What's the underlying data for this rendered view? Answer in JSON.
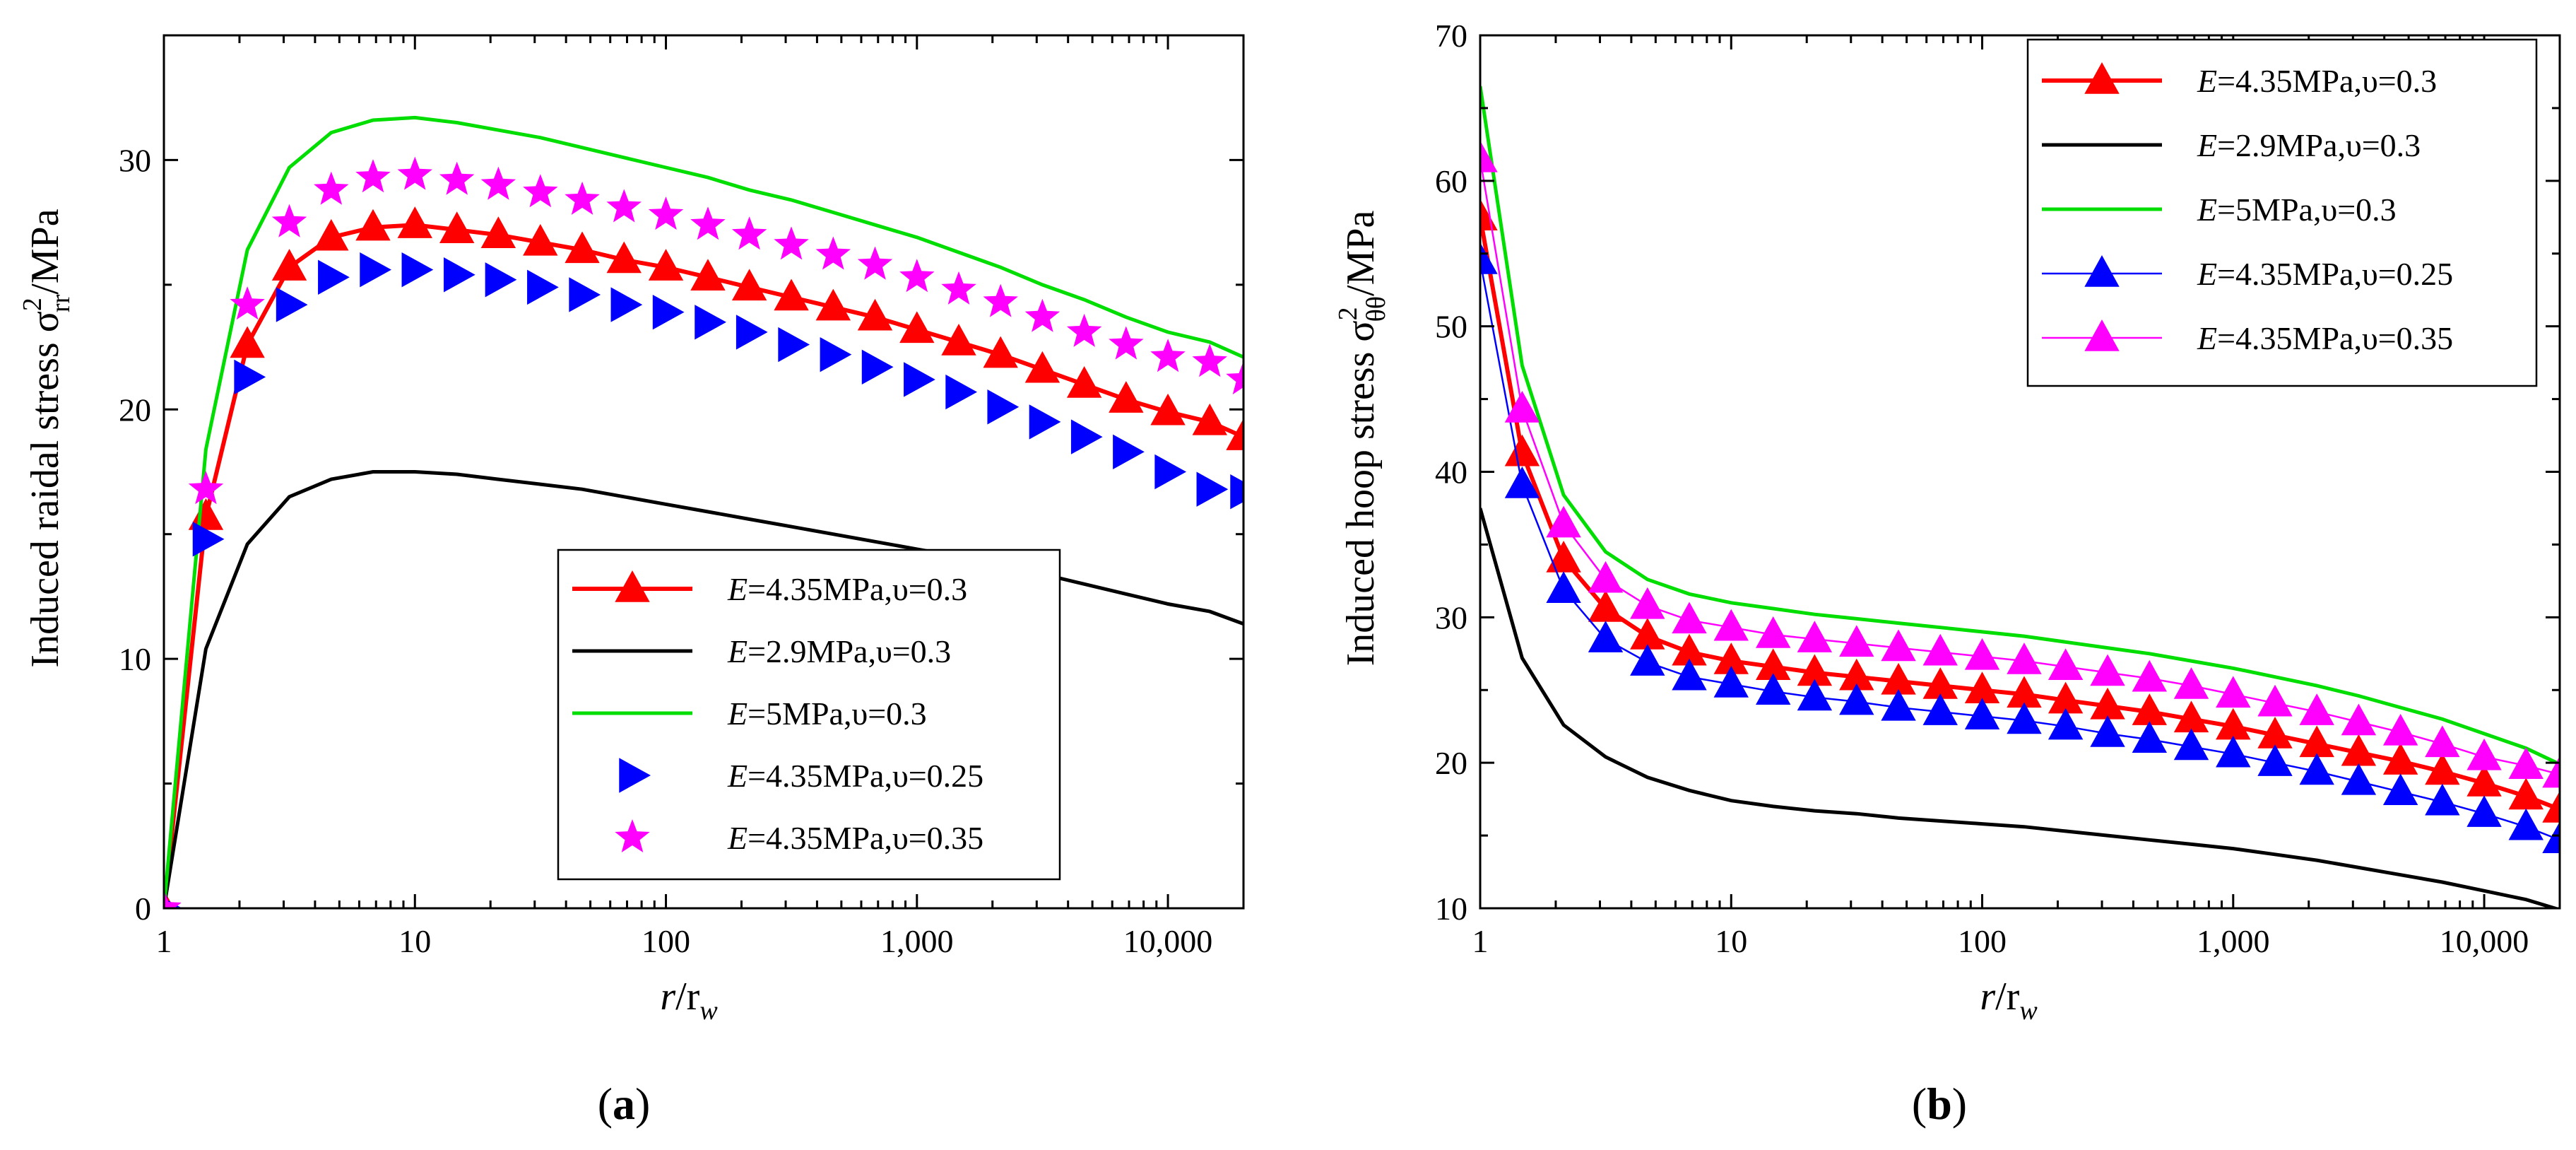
{
  "chart_data": [
    {
      "type": "line",
      "panel_label": "(a)",
      "panel_letter": "a",
      "ylabel": {
        "main": "Induced raidal stress σ",
        "sup": "2",
        "sub": "rr",
        "unit": "/MPa"
      },
      "xlabel": {
        "r": "r",
        "slash": "/r",
        "w": "w"
      },
      "x_scale": "log",
      "xlim": [
        1,
        20000
      ],
      "ylim": [
        0,
        35
      ],
      "x_ticks": [
        {
          "v": 1,
          "label": "1"
        },
        {
          "v": 10,
          "label": "10"
        },
        {
          "v": 100,
          "label": "100"
        },
        {
          "v": 1000,
          "label": "1,000"
        },
        {
          "v": 10000,
          "label": "10,000"
        }
      ],
      "y_ticks": [
        {
          "v": 0,
          "label": "0"
        },
        {
          "v": 10,
          "label": "10"
        },
        {
          "v": 20,
          "label": "20"
        },
        {
          "v": 30,
          "label": "30"
        }
      ],
      "legend_position": "lower-right",
      "x": [
        1,
        1.47,
        2.15,
        3.16,
        4.64,
        6.81,
        10,
        14.7,
        21.5,
        31.6,
        46.4,
        68.1,
        100,
        147,
        215,
        316,
        464,
        681,
        1000,
        1468,
        2154,
        3162,
        4642,
        6813,
        10000,
        14678,
        20000
      ],
      "series": [
        {
          "name": "E=4.35MPa,υ=0.3",
          "color": "#ff0000",
          "marker": "triangle-up",
          "line": true,
          "values": [
            0,
            15.7,
            22.6,
            25.7,
            26.9,
            27.3,
            27.4,
            27.2,
            27.0,
            26.7,
            26.4,
            26.0,
            25.7,
            25.3,
            24.9,
            24.5,
            24.1,
            23.7,
            23.2,
            22.7,
            22.2,
            21.6,
            21.0,
            20.4,
            19.9,
            19.5,
            18.9
          ]
        },
        {
          "name": "E=2.9MPa,υ=0.3",
          "color": "#000000",
          "marker": "none",
          "line": true,
          "values": [
            0,
            10.4,
            14.6,
            16.5,
            17.2,
            17.5,
            17.5,
            17.4,
            17.2,
            17.0,
            16.8,
            16.5,
            16.2,
            15.9,
            15.6,
            15.3,
            15.0,
            14.7,
            14.4,
            14.1,
            13.8,
            13.4,
            13.0,
            12.6,
            12.2,
            11.9,
            11.4
          ]
        },
        {
          "name": "E=5MPa,υ=0.3",
          "color": "#00dd00",
          "marker": "none",
          "line": true,
          "values": [
            0,
            18.4,
            26.4,
            29.7,
            31.1,
            31.6,
            31.7,
            31.5,
            31.2,
            30.9,
            30.5,
            30.1,
            29.7,
            29.3,
            28.8,
            28.4,
            27.9,
            27.4,
            26.9,
            26.3,
            25.7,
            25.0,
            24.4,
            23.7,
            23.1,
            22.7,
            22.1
          ]
        },
        {
          "name": "E=4.35MPa,υ=0.25",
          "color": "#0000ff",
          "marker": "triangle-right",
          "line": false,
          "values": [
            0,
            14.8,
            21.3,
            24.2,
            25.3,
            25.6,
            25.6,
            25.4,
            25.2,
            24.9,
            24.6,
            24.2,
            23.9,
            23.5,
            23.1,
            22.6,
            22.2,
            21.7,
            21.2,
            20.7,
            20.1,
            19.5,
            18.9,
            18.3,
            17.5,
            16.8,
            16.7
          ]
        },
        {
          "name": "E=4.35MPa,υ=0.35",
          "color": "#ff00ff",
          "marker": "star",
          "line": false,
          "values": [
            0,
            16.8,
            24.2,
            27.5,
            28.8,
            29.3,
            29.4,
            29.2,
            29.0,
            28.7,
            28.4,
            28.1,
            27.8,
            27.4,
            27.0,
            26.6,
            26.2,
            25.8,
            25.3,
            24.8,
            24.3,
            23.7,
            23.1,
            22.6,
            22.1,
            21.9,
            21.2
          ]
        }
      ]
    },
    {
      "type": "line",
      "panel_label": "(b)",
      "panel_letter": "b",
      "ylabel": {
        "main": "Induced hoop stress σ",
        "sup": "2",
        "sub": "θθ",
        "unit": "/MPa"
      },
      "xlabel": {
        "r": "r",
        "slash": "/r",
        "w": "w"
      },
      "x_scale": "log",
      "xlim": [
        1,
        20000
      ],
      "ylim": [
        10,
        70
      ],
      "x_ticks": [
        {
          "v": 1,
          "label": "1"
        },
        {
          "v": 10,
          "label": "10"
        },
        {
          "v": 100,
          "label": "100"
        },
        {
          "v": 1000,
          "label": "1,000"
        },
        {
          "v": 10000,
          "label": "10,000"
        }
      ],
      "y_ticks": [
        {
          "v": 10,
          "label": "10"
        },
        {
          "v": 20,
          "label": "20"
        },
        {
          "v": 30,
          "label": "30"
        },
        {
          "v": 40,
          "label": "40"
        },
        {
          "v": 50,
          "label": "50"
        },
        {
          "v": 60,
          "label": "60"
        },
        {
          "v": 70,
          "label": "70"
        }
      ],
      "legend_position": "top-right",
      "x": [
        1,
        1.47,
        2.15,
        3.16,
        4.64,
        6.81,
        10,
        14.7,
        21.5,
        31.6,
        46.4,
        68.1,
        100,
        147,
        215,
        316,
        464,
        681,
        1000,
        1468,
        2154,
        3162,
        4642,
        6813,
        10000,
        14678,
        20000
      ],
      "series": [
        {
          "name": "E=4.35MPa,υ=0.3",
          "color": "#ff0000",
          "marker": "triangle-up",
          "line": true,
          "values": [
            57.5,
            41.3,
            34.0,
            30.6,
            28.7,
            27.6,
            27.0,
            26.6,
            26.2,
            25.9,
            25.6,
            25.3,
            25.0,
            24.7,
            24.3,
            23.9,
            23.5,
            23.0,
            22.5,
            21.9,
            21.3,
            20.7,
            20.1,
            19.4,
            18.6,
            17.7,
            16.8
          ]
        },
        {
          "name": "E=2.9MPa,υ=0.3",
          "color": "#000000",
          "marker": "none",
          "line": true,
          "values": [
            37.5,
            27.2,
            22.6,
            20.4,
            19.0,
            18.1,
            17.4,
            17.0,
            16.7,
            16.5,
            16.2,
            16.0,
            15.8,
            15.6,
            15.3,
            15.0,
            14.7,
            14.4,
            14.1,
            13.7,
            13.3,
            12.8,
            12.3,
            11.8,
            11.2,
            10.6,
            9.9
          ]
        },
        {
          "name": "E=5MPa,υ=0.3",
          "color": "#00dd00",
          "marker": "none",
          "line": true,
          "values": [
            66.5,
            47.3,
            38.4,
            34.5,
            32.6,
            31.6,
            31.0,
            30.6,
            30.2,
            29.9,
            29.6,
            29.3,
            29.0,
            28.7,
            28.3,
            27.9,
            27.5,
            27.0,
            26.5,
            25.9,
            25.3,
            24.6,
            23.8,
            23.0,
            22.0,
            21.0,
            19.9
          ]
        },
        {
          "name": "E=4.35MPa,υ=0.25",
          "color": "#0000ff",
          "marker": "triangle-up",
          "line": true,
          "values": [
            54.5,
            39.1,
            31.9,
            28.5,
            26.9,
            25.9,
            25.4,
            24.9,
            24.5,
            24.2,
            23.8,
            23.5,
            23.2,
            22.9,
            22.5,
            22.0,
            21.6,
            21.1,
            20.6,
            20.0,
            19.4,
            18.7,
            18.0,
            17.3,
            16.5,
            15.6,
            14.7
          ]
        },
        {
          "name": "E=4.35MPa,υ=0.35",
          "color": "#ff00ff",
          "marker": "triangle-up",
          "line": true,
          "values": [
            61.5,
            44.3,
            36.4,
            32.6,
            30.8,
            29.8,
            29.3,
            28.8,
            28.5,
            28.2,
            27.9,
            27.6,
            27.3,
            27.0,
            26.6,
            26.2,
            25.8,
            25.3,
            24.7,
            24.1,
            23.5,
            22.8,
            22.1,
            21.3,
            20.4,
            19.8,
            19.2
          ]
        }
      ]
    }
  ]
}
